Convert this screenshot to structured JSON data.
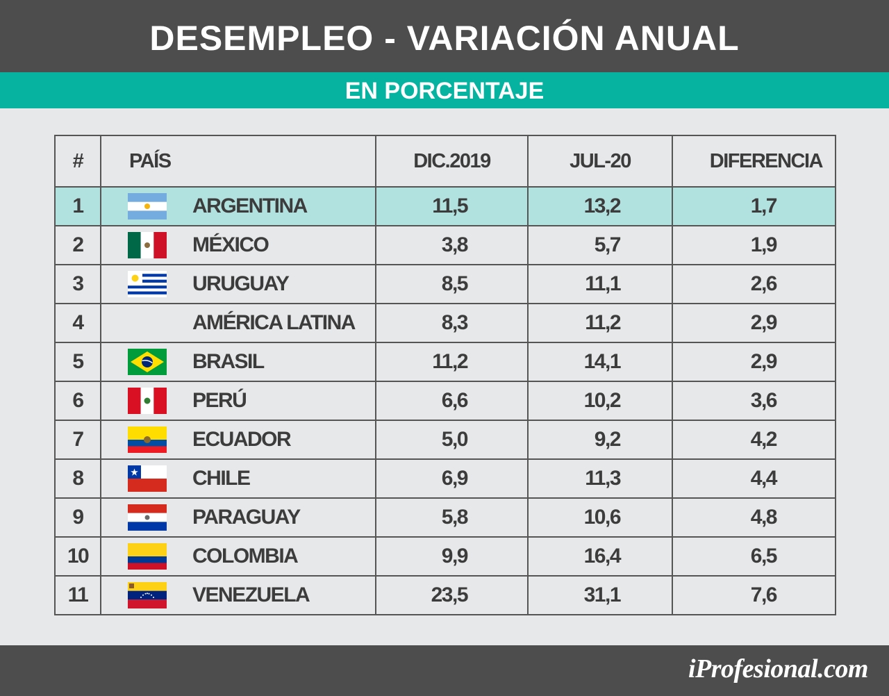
{
  "header": {
    "title": "DESEMPLEO - VARIACIÓN ANUAL",
    "subtitle": "EN PORCENTAJE"
  },
  "colors": {
    "header_bg": "#4d4d4d",
    "subheader_bg": "#06b3a0",
    "highlight_row": "#b2e2df",
    "page_bg": "#e7e8ea"
  },
  "chart_data": {
    "type": "table",
    "columns": [
      "#",
      "PAÍS",
      "DIC.2019",
      "JUL-20",
      "DIFERENCIA"
    ],
    "rows": [
      {
        "rank": "1",
        "country": "ARGENTINA",
        "flag": "argentina-flag-icon",
        "dic2019": "11,5",
        "jul20": "13,2",
        "diferencia": "1,7",
        "highlight": true
      },
      {
        "rank": "2",
        "country": "MÉXICO",
        "flag": "mexico-flag-icon",
        "dic2019": "3,8",
        "jul20": "5,7",
        "diferencia": "1,9"
      },
      {
        "rank": "3",
        "country": "URUGUAY",
        "flag": "uruguay-flag-icon",
        "dic2019": "8,5",
        "jul20": "11,1",
        "diferencia": "2,6"
      },
      {
        "rank": "4",
        "country": "AMÉRICA LATINA",
        "flag": "",
        "dic2019": "8,3",
        "jul20": "11,2",
        "diferencia": "2,9"
      },
      {
        "rank": "5",
        "country": "BRASIL",
        "flag": "brazil-flag-icon",
        "dic2019": "11,2",
        "jul20": "14,1",
        "diferencia": "2,9"
      },
      {
        "rank": "6",
        "country": "PERÚ",
        "flag": "peru-flag-icon",
        "dic2019": "6,6",
        "jul20": "10,2",
        "diferencia": "3,6"
      },
      {
        "rank": "7",
        "country": "ECUADOR",
        "flag": "ecuador-flag-icon",
        "dic2019": "5,0",
        "jul20": "9,2",
        "diferencia": "4,2"
      },
      {
        "rank": "8",
        "country": "CHILE",
        "flag": "chile-flag-icon",
        "dic2019": "6,9",
        "jul20": "11,3",
        "diferencia": "4,4"
      },
      {
        "rank": "9",
        "country": "PARAGUAY",
        "flag": "paraguay-flag-icon",
        "dic2019": "5,8",
        "jul20": "10,6",
        "diferencia": "4,8"
      },
      {
        "rank": "10",
        "country": "COLOMBIA",
        "flag": "colombia-flag-icon",
        "dic2019": "9,9",
        "jul20": "16,4",
        "diferencia": "6,5"
      },
      {
        "rank": "11",
        "country": "VENEZUELA",
        "flag": "venezuela-flag-icon",
        "dic2019": "23,5",
        "jul20": "31,1",
        "diferencia": "7,6"
      }
    ]
  },
  "footer": {
    "brand": "iProfesional.com"
  }
}
